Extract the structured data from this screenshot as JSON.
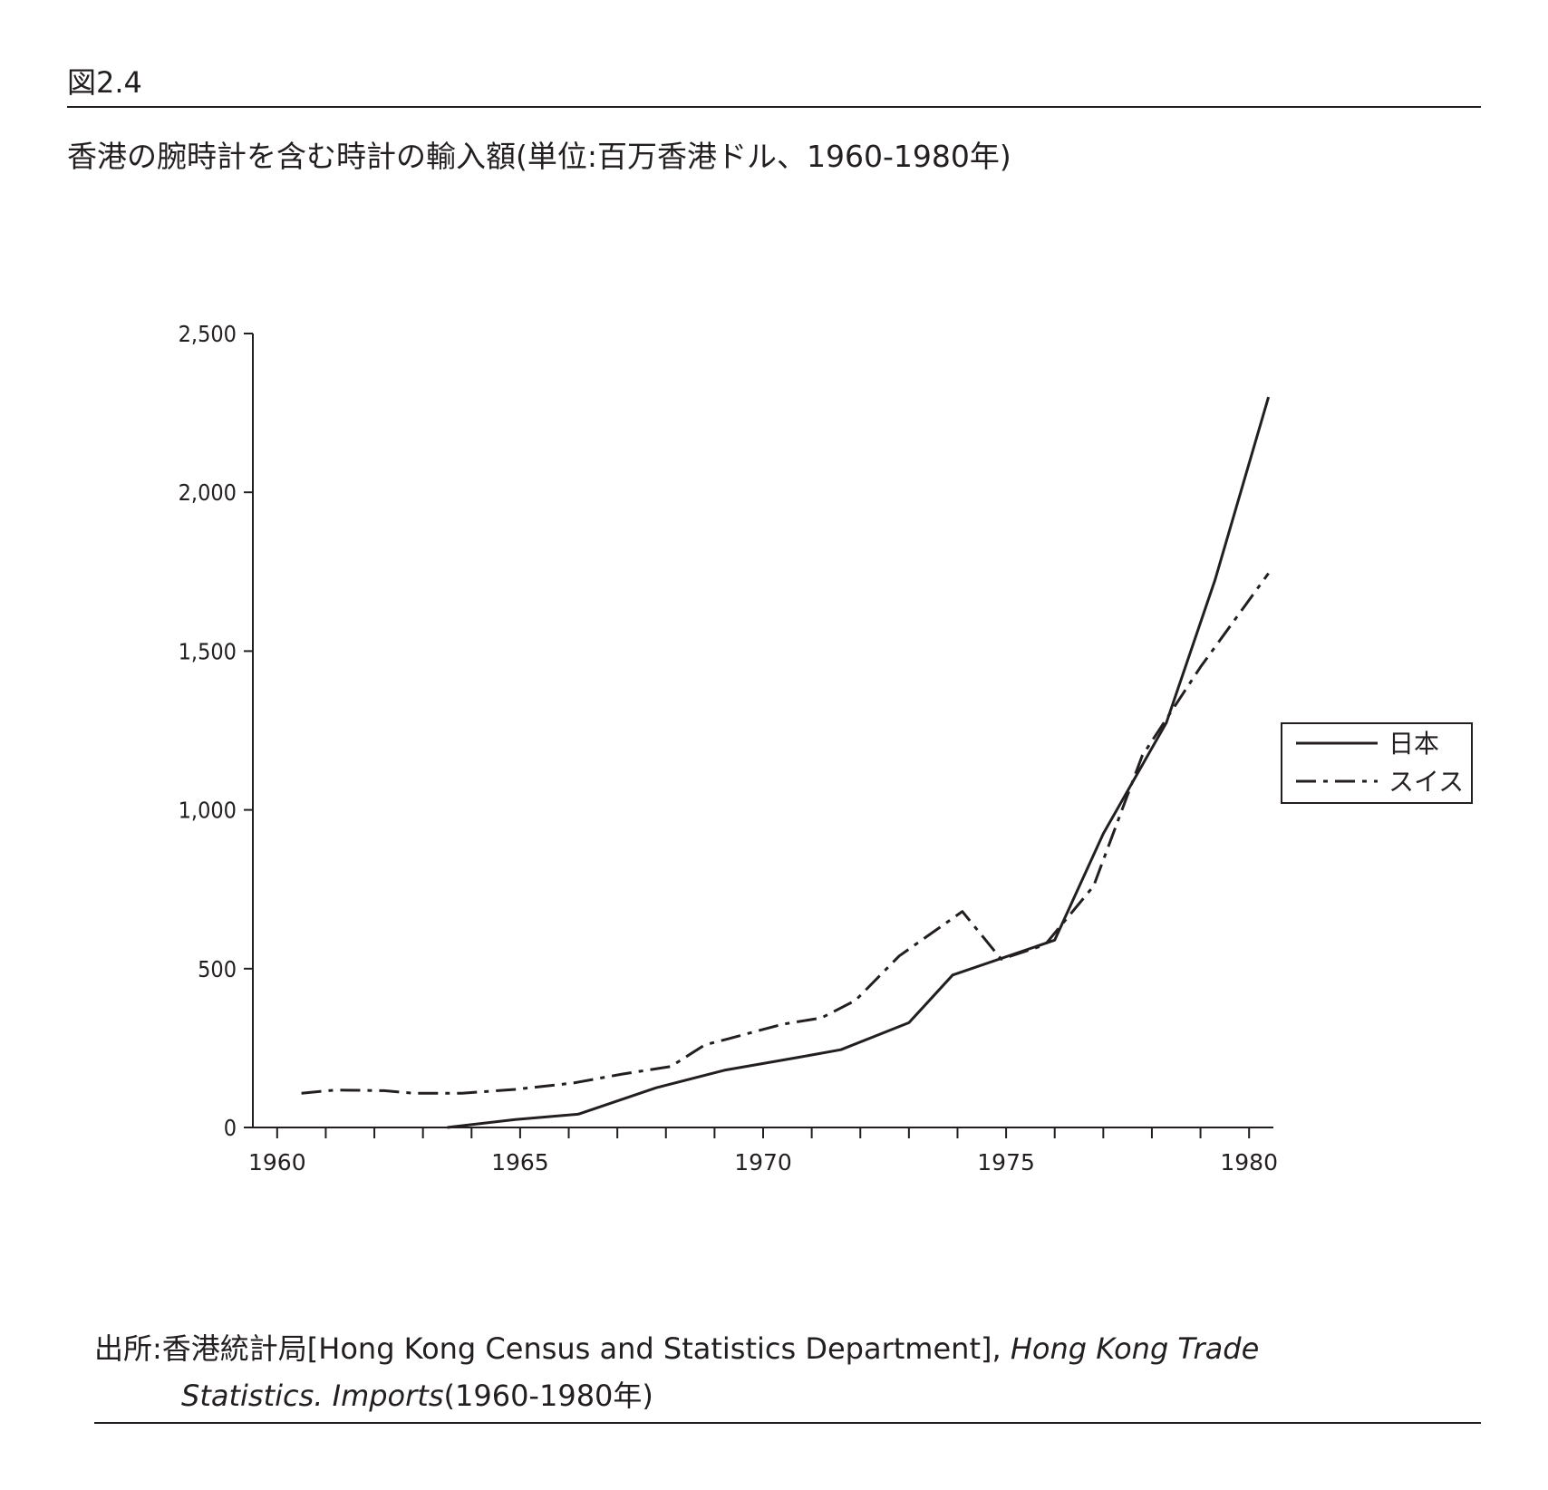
{
  "figure_label": "図2.4",
  "chart_data": {
    "type": "line",
    "title": "香港の腕時計を含む時計の輸入額(単位:百万香港ドル、1960-1980年)",
    "xlabel": "",
    "ylabel": "",
    "xlim": [
      1959.5,
      1980.5
    ],
    "ylim": [
      0,
      2500
    ],
    "x_ticks": [
      1960,
      1965,
      1970,
      1975,
      1980
    ],
    "y_ticks": [
      0,
      500,
      1000,
      1500,
      2000,
      2500
    ],
    "y_tick_labels": [
      "0",
      "500",
      "1,000",
      "1,500",
      "2,000",
      "2,500"
    ],
    "grid": false,
    "legend_position": "right",
    "series": [
      {
        "name": "日本",
        "style": "solid",
        "color": "#231f20",
        "points": [
          [
            1963.5,
            0
          ],
          [
            1964.9,
            25
          ],
          [
            1966.2,
            42
          ],
          [
            1967.8,
            125
          ],
          [
            1969.2,
            180
          ],
          [
            1970.7,
            220
          ],
          [
            1971.6,
            245
          ],
          [
            1973.0,
            330
          ],
          [
            1973.9,
            480
          ],
          [
            1976.0,
            590
          ],
          [
            1977.0,
            925
          ],
          [
            1978.3,
            1275
          ],
          [
            1979.3,
            1725
          ],
          [
            1980.4,
            2300
          ]
        ]
      },
      {
        "name": "スイス",
        "style": "dashdot",
        "color": "#231f20",
        "points": [
          [
            1960.5,
            108
          ],
          [
            1961.2,
            118
          ],
          [
            1962.2,
            116
          ],
          [
            1962.8,
            108
          ],
          [
            1963.8,
            108
          ],
          [
            1964.9,
            120
          ],
          [
            1966.1,
            140
          ],
          [
            1967.1,
            168
          ],
          [
            1968.1,
            192
          ],
          [
            1968.8,
            260
          ],
          [
            1969.3,
            280
          ],
          [
            1970.4,
            325
          ],
          [
            1971.2,
            345
          ],
          [
            1971.9,
            400
          ],
          [
            1972.8,
            540
          ],
          [
            1974.1,
            680
          ],
          [
            1974.9,
            530
          ],
          [
            1975.8,
            575
          ],
          [
            1976.8,
            760
          ],
          [
            1977.8,
            1170
          ],
          [
            1979.0,
            1450
          ],
          [
            1980.4,
            1745
          ]
        ]
      }
    ]
  },
  "source": {
    "prefix": "出所:香港統計局[Hong Kong Census and Statistics Department], ",
    "title_line1": "Hong Kong Trade",
    "title_line2": "Statistics. Imports",
    "suffix": "(1960-1980年)"
  }
}
